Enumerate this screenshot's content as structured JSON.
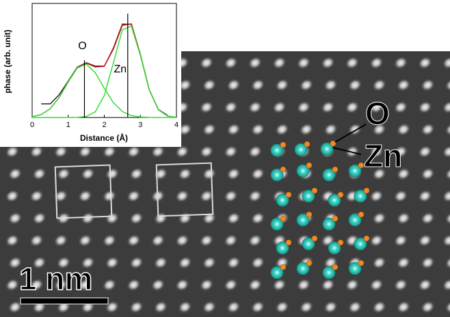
{
  "chart_data": {
    "type": "line",
    "x": [
      0,
      0.25,
      0.5,
      0.75,
      1,
      1.25,
      1.5,
      1.75,
      2,
      2.25,
      2.5,
      2.75,
      3,
      3.25,
      3.5,
      3.75,
      4
    ],
    "xlim": [
      0,
      4
    ],
    "xticks": [
      0,
      1,
      2,
      3,
      4
    ],
    "ylim": [
      0,
      1
    ],
    "x_label": "Distance (Å)",
    "y_label": "phase (arb. unit)",
    "series": [
      {
        "color": "#222222",
        "values": [
          null,
          0.12,
          0.12,
          0.2,
          0.32,
          0.44,
          0.48,
          0.45,
          0.45,
          0.6,
          0.81,
          0.82,
          0.55,
          0.24,
          0.07,
          0.02,
          null
        ]
      },
      {
        "color": "#d01010",
        "values": [
          0.007,
          0.026,
          0.077,
          0.176,
          0.313,
          0.435,
          0.477,
          0.443,
          0.449,
          0.608,
          0.82,
          0.817,
          0.547,
          0.24,
          0.068,
          0.013,
          0.001
        ]
      },
      {
        "color": "#33dd33",
        "values": [
          0.007,
          0.026,
          0.077,
          0.176,
          0.313,
          0.434,
          0.468,
          0.393,
          0.257,
          0.131,
          0.052,
          0.016,
          0.004,
          0.001,
          0,
          0,
          0
        ]
      },
      {
        "color": "#33dd33",
        "values": [
          0,
          0,
          0,
          0,
          0,
          0.001,
          0.009,
          0.05,
          0.192,
          0.477,
          0.768,
          0.801,
          0.543,
          0.239,
          0.068,
          0.013,
          0.001
        ]
      }
    ],
    "annotations": [
      {
        "text": "O",
        "x": 1.45
      },
      {
        "text": "Zn",
        "x": 2.65
      }
    ]
  },
  "image": {
    "oxygen_label": "O",
    "zinc_label": "Zn",
    "scale_bar": "1 nm"
  }
}
